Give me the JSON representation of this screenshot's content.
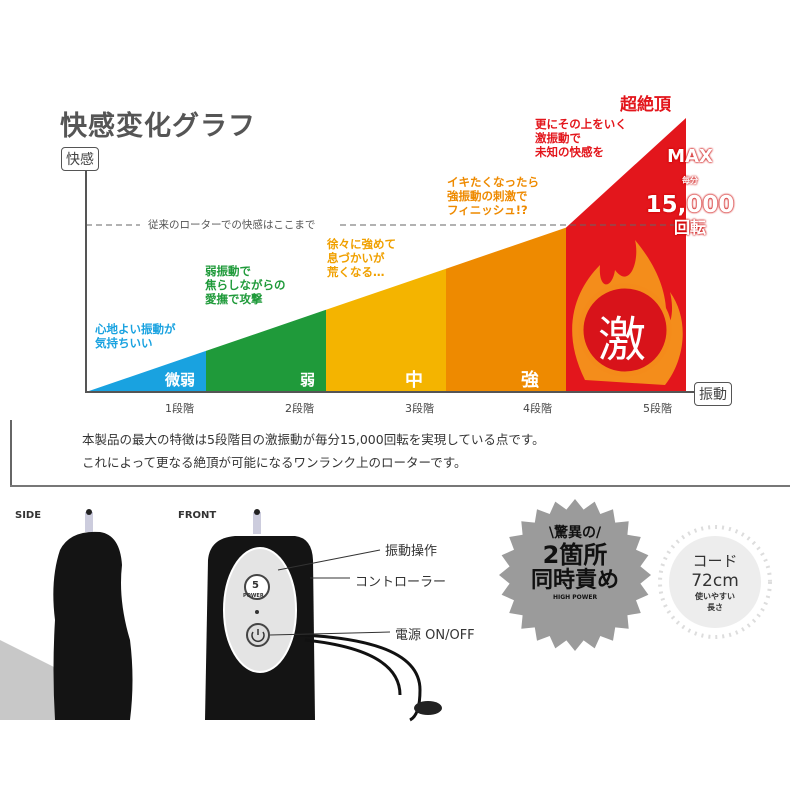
{
  "title": "快感変化グラフ",
  "chart_data": {
    "type": "area",
    "title": "快感変化グラフ",
    "ylabel": "快感",
    "xlabel": "振動",
    "categories": [
      "1段階",
      "2段階",
      "3段階",
      "4段階",
      "5段階"
    ],
    "stage_names": [
      "微弱",
      "弱",
      "中",
      "強",
      "激"
    ],
    "relative_values": [
      0.15,
      0.3,
      0.45,
      0.6,
      1.0
    ],
    "colors": [
      "#19a2e0",
      "#1f9a3a",
      "#f4b400",
      "#ee8a00",
      "#e3161c"
    ],
    "reference_line": {
      "value": 0.6,
      "label": "従来のローターでの快感はここまで"
    },
    "annotations": [
      {
        "text": "心地よい振動が\n気持ちいい",
        "color": "#19a2e0"
      },
      {
        "text": "弱振動で\n焦らしながらの\n愛撫で攻撃",
        "color": "#1f9a3a"
      },
      {
        "text": "徐々に強めて\n息づかいが\n荒くなる…",
        "color": "#f0a000"
      },
      {
        "text": "イキたくなったら\n強振動の刺激で\nフィニッシュ!?",
        "color": "#ee8a00"
      },
      {
        "text": "更にその上をいく\n激振動で\n未知の快感を",
        "color": "#e3161c"
      }
    ],
    "peak_label": "超絶頂",
    "max": {
      "label": "MAX",
      "prefix": "毎分",
      "value": "15,000",
      "unit": "回転"
    }
  },
  "description": [
    "本製品の最大の特徴は5段階目の激振動が毎分15,000回転を実現している点です。",
    "これによって更なる絶頂が可能になるワンランク上のローターです。"
  ],
  "product": {
    "side_label": "SIDE",
    "front_label": "FRONT",
    "callouts": [
      "振動操作",
      "コントローラー",
      "電源 ON/OFF"
    ],
    "button_text": "POWER",
    "button_number": "5"
  },
  "badge": {
    "top": "\\驚異の/",
    "line1": "2箇所",
    "line2": "同時責め",
    "sub": "HIGH POWER"
  },
  "cord": {
    "label": "コード",
    "length": "72cm",
    "note1": "使いやすい",
    "note2": "長さ"
  }
}
